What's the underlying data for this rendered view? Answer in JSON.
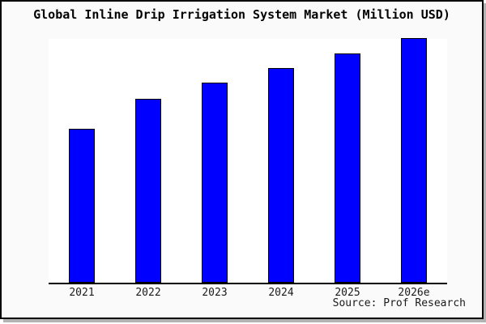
{
  "window": {
    "background": "#fafafa",
    "plot_background": "#ffffff",
    "frame_border_color": "#000000",
    "shadow_color": "#b3b3b3"
  },
  "chart_data": {
    "type": "bar",
    "title": "Global Inline Drip Irrigation System Market (Million USD)",
    "unit": "Million USD",
    "categories": [
      "2021",
      "2022",
      "2023",
      "2024",
      "2025",
      "2026e"
    ],
    "values": [
      62.5,
      75,
      81.5,
      87.5,
      93.5,
      100
    ],
    "values_note": "no numeric y-axis is shown in the image; values are relative bar heights with 2026e = 100",
    "xlabel": "",
    "ylabel": "",
    "ylim": [
      0,
      101
    ],
    "grid": false,
    "y_axis_visible": false,
    "legend": false,
    "bar_color": "#0000ff",
    "bar_border_color": "#000000",
    "axis_color": "#000000",
    "source_label": "Source: Prof Research"
  }
}
